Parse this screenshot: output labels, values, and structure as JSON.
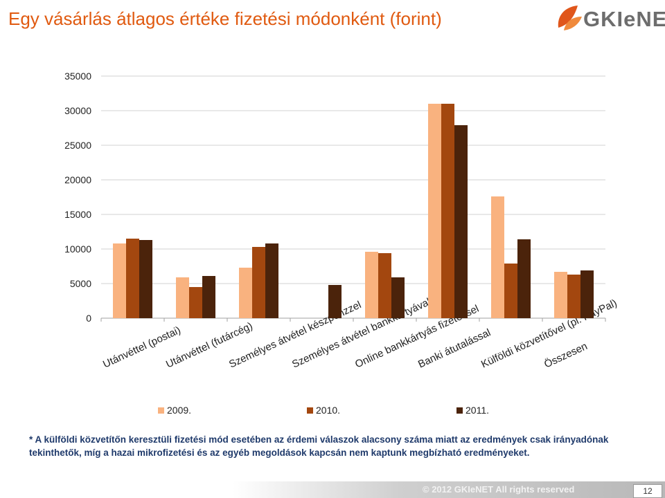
{
  "slide": {
    "title": "Egy vásárlás átlagos értéke fizetési módonként (forint)",
    "logo_text": "GKIeNET",
    "footnote": "* A külföldi közvetítőn keresztüli fizetési mód esetében az érdemi válaszok alacsony száma miatt az eredmények csak irányadónak tekinthetők, míg a hazai mikrofizetési és az egyéb megoldások kapcsán nem kaptunk megbízható eredményeket.",
    "footer_text": "© 2012 GKIeNET All rights reserved",
    "page_number": "12"
  },
  "colors": {
    "title": "#e05a10",
    "s2009": "#f9b27f",
    "s2010": "#a3470f",
    "s2011": "#4b230b",
    "footnote": "#1f3a6b",
    "logo_leaf": "#e0561b"
  },
  "chart_data": {
    "type": "bar",
    "categories": [
      "Utánvéttel (postai)",
      "Utánvéttel (futárcég)",
      "Személyes átvétel készpénzzel",
      "Személyes átvétel bankkártyával",
      "Online bankkártyás fizetéssel",
      "Banki átutalással",
      "Külföldi közvetítővel (pl. PayPal)",
      "Összesen"
    ],
    "series": [
      {
        "name": "2009.",
        "values": [
          10800,
          5900,
          7300,
          null,
          9600,
          31000,
          17600,
          6700
        ]
      },
      {
        "name": "2010.",
        "values": [
          11500,
          4500,
          10300,
          null,
          9400,
          31000,
          7900,
          6300
        ]
      },
      {
        "name": "2011.",
        "values": [
          11300,
          6100,
          10800,
          4800,
          5900,
          27900,
          11400,
          6900
        ]
      }
    ],
    "yticks": [
      "0",
      "5000",
      "10000",
      "15000",
      "20000",
      "25000",
      "30000",
      "35000"
    ],
    "ylim": [
      0,
      35000
    ],
    "grid": true,
    "legend": "bottom"
  }
}
